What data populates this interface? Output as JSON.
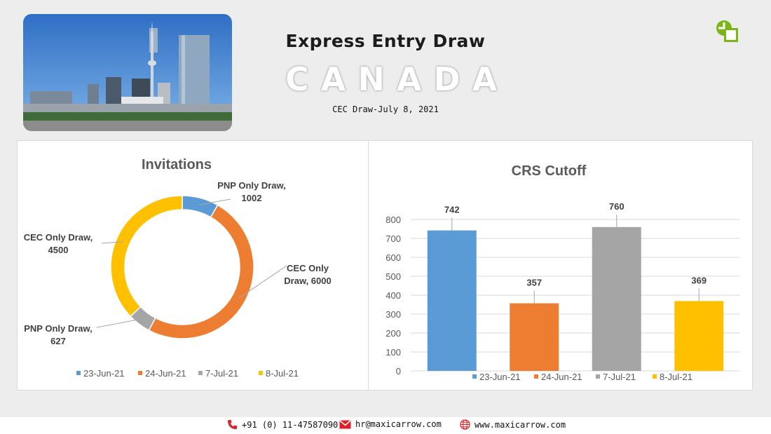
{
  "header": {
    "title": "Express Entry Draw",
    "country": "CANADA",
    "subtitle": "CEC Draw-July 8, 2021"
  },
  "colors": {
    "blue": "#5b9bd5",
    "orange": "#ed7d31",
    "gray": "#a5a5a5",
    "yellow": "#ffc000"
  },
  "chart_data": [
    {
      "type": "pie",
      "title": "Invitations",
      "slices": [
        {
          "label_line1": "PNP Only Draw,",
          "label_line2": "1002",
          "value": 1002,
          "legend": "23-Jun-21",
          "color": "#5b9bd5"
        },
        {
          "label_line1": "CEC Only",
          "label_line2": "Draw, 6000",
          "value": 6000,
          "legend": "24-Jun-21",
          "color": "#ed7d31"
        },
        {
          "label_line1": "PNP Only Draw,",
          "label_line2": "627",
          "value": 627,
          "legend": "7-Jul-21",
          "color": "#a5a5a5"
        },
        {
          "label_line1": "CEC Only Draw,",
          "label_line2": "4500",
          "value": 4500,
          "legend": "8-Jul-21",
          "color": "#ffc000"
        }
      ],
      "legend_position": "bottom"
    },
    {
      "type": "bar",
      "title": "CRS Cutoff",
      "categories": [
        "23-Jun-21",
        "24-Jun-21",
        "7-Jul-21",
        "8-Jul-21"
      ],
      "values": [
        742,
        357,
        760,
        369
      ],
      "colors": [
        "#5b9bd5",
        "#ed7d31",
        "#a5a5a5",
        "#ffc000"
      ],
      "ylim": [
        0,
        800
      ],
      "yticks": [
        "0",
        "100",
        "200",
        "300",
        "400",
        "500",
        "600",
        "700",
        "800"
      ],
      "grid": true,
      "legend_position": "bottom"
    }
  ],
  "footer": {
    "phone": "+91 (0) 11-47587090",
    "email": "hr@maxicarrow.com",
    "website": "www.maxicarrow.com"
  }
}
